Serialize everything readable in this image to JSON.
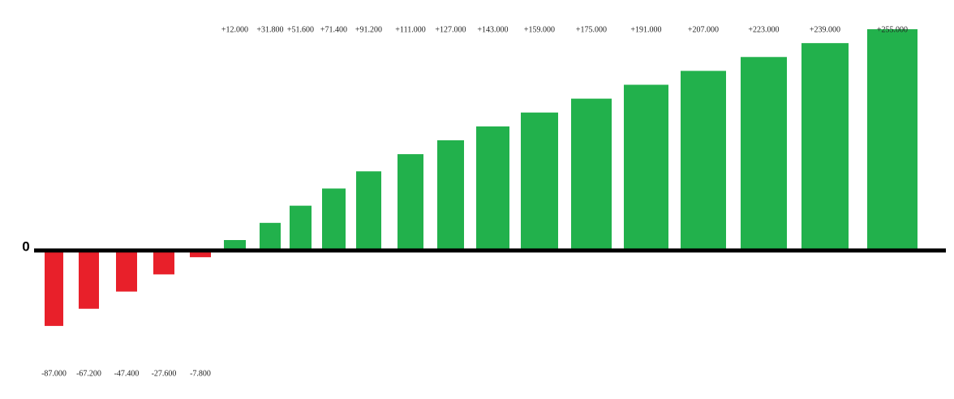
{
  "chart_data": {
    "type": "bar",
    "values": [
      -87,
      -67.2,
      -47.4,
      -27.6,
      -7.8,
      12,
      31.8,
      51.6,
      71.4,
      91.2,
      111,
      127,
      143,
      159,
      175,
      191,
      207,
      223,
      239,
      255
    ],
    "value_labels": [
      "-87.000",
      "-67.200",
      "-47.400",
      "-27.600",
      "-7.800",
      "+12.000",
      "+31.800",
      "+51.600",
      "+71.400",
      "+91.200",
      "+111.000",
      "+127.000",
      "+143.000",
      "+159.000",
      "+175.000",
      "+191.000",
      "+207.000",
      "+223.000",
      "+239.000",
      "+255.000"
    ],
    "positive_color": "#22b14c",
    "negative_color": "#e8202a",
    "ylim": [
      -160,
      270
    ],
    "yticks": [
      0
    ]
  }
}
